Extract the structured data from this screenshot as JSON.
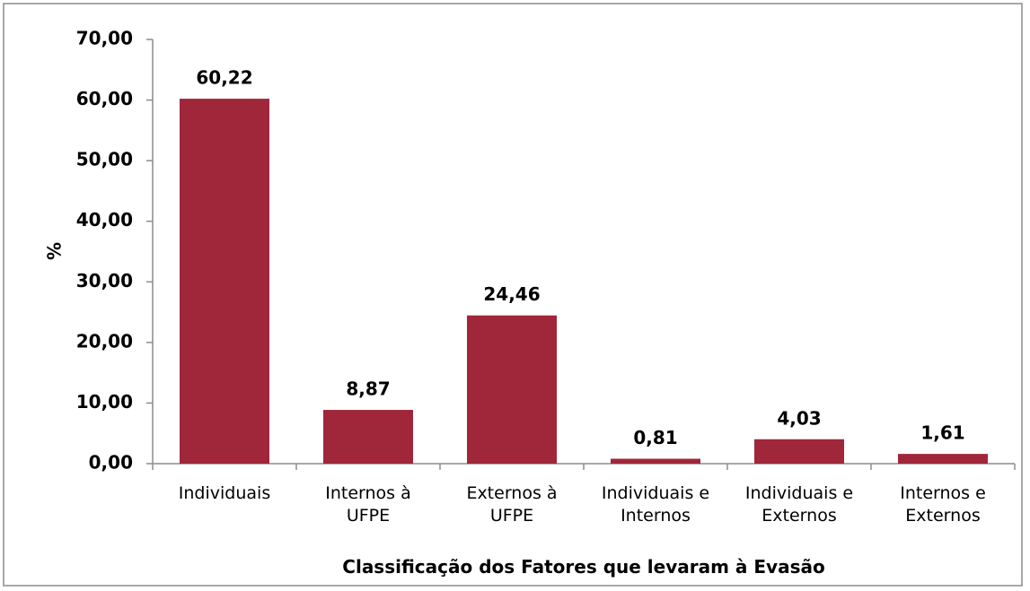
{
  "chart_data": {
    "type": "bar",
    "x_label": "Classificação dos Fatores  que levaram à Evasão",
    "y_label": "%",
    "categories": [
      "Individuais",
      "Internos à\nUFPE",
      "Externos à\nUFPE",
      "Individuais e\nInternos",
      "Individuais e\nExternos",
      "Internos e\nExternos"
    ],
    "values": [
      60.22,
      8.87,
      24.46,
      0.81,
      4.03,
      1.61
    ],
    "value_labels": [
      "60,22",
      "8,87",
      "24,46",
      "0,81",
      "4,03",
      "1,61"
    ],
    "color": "#a0263a",
    "ylim": [
      0,
      70
    ],
    "yticks": [
      {
        "value": 0,
        "label": "0,00"
      },
      {
        "value": 10,
        "label": "10,00"
      },
      {
        "value": 20,
        "label": "20,00"
      },
      {
        "value": 30,
        "label": "30,00"
      },
      {
        "value": 40,
        "label": "40,00"
      },
      {
        "value": 50,
        "label": "50,00"
      },
      {
        "value": 60,
        "label": "60,00"
      },
      {
        "value": 70,
        "label": "70,00"
      }
    ],
    "grid": false
  }
}
